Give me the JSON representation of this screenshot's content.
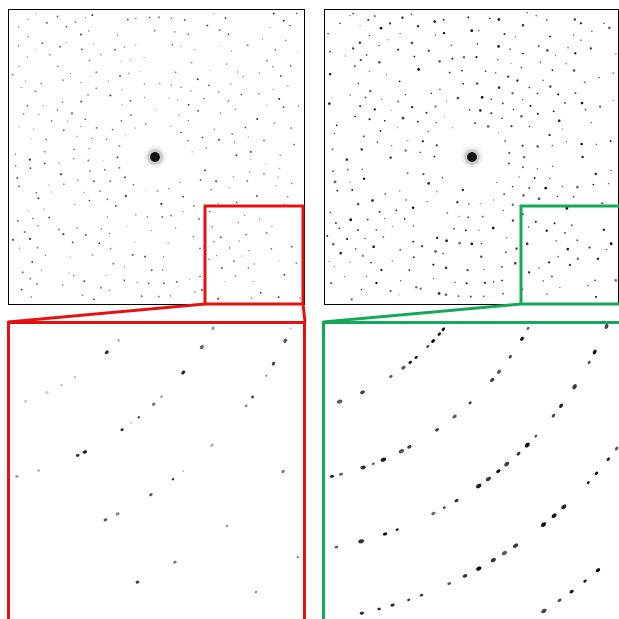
{
  "figure": {
    "panels": [
      {
        "id": "left",
        "frame_color": "#e41111",
        "spot_contrast": "low"
      },
      {
        "id": "right",
        "frame_color": "#16a85a",
        "spot_contrast": "high"
      }
    ],
    "colors": {
      "background": "#ffffff",
      "panel_border": "#000000",
      "spot": "#000000",
      "zoom_left": "#e41111",
      "zoom_right": "#16a85a"
    }
  }
}
